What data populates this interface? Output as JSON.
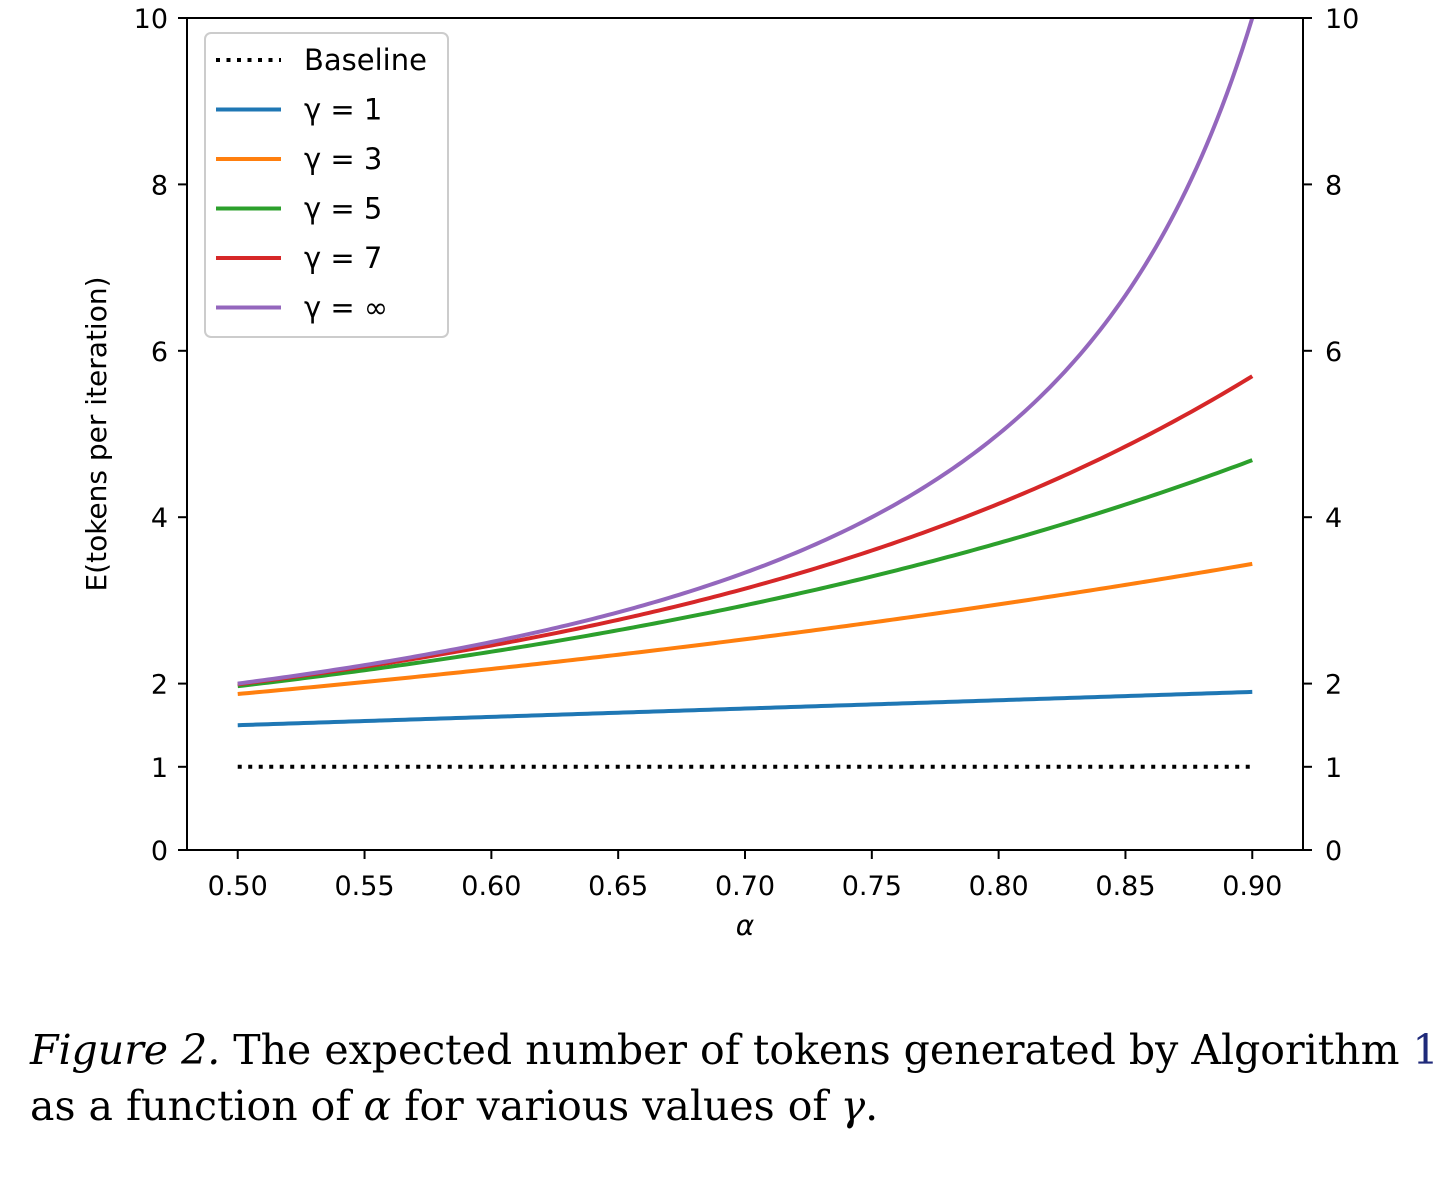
{
  "chart_data": {
    "type": "line",
    "xlabel": "α",
    "ylabel": "E(tokens per iteration)",
    "xlim": [
      0.48,
      0.92
    ],
    "ylim": [
      0,
      10
    ],
    "xticks": [
      "0.50",
      "0.55",
      "0.60",
      "0.65",
      "0.70",
      "0.75",
      "0.80",
      "0.85",
      "0.90"
    ],
    "yticks": [
      "0",
      "1",
      "2",
      "4",
      "6",
      "8",
      "10"
    ],
    "ytick_values": [
      0,
      1,
      2,
      4,
      6,
      8,
      10
    ],
    "right_axis_ticks": true,
    "grid": false,
    "legend_position": "upper-left",
    "series": [
      {
        "name": "Baseline",
        "color": "#000000",
        "style": "dotted",
        "x": [
          0.5,
          0.55,
          0.6,
          0.65,
          0.7,
          0.75,
          0.8,
          0.85,
          0.9
        ],
        "y": [
          1,
          1,
          1,
          1,
          1,
          1,
          1,
          1,
          1
        ]
      },
      {
        "name": "γ = 1",
        "color": "#1f77b4",
        "style": "solid",
        "x": [
          0.5,
          0.55,
          0.6,
          0.65,
          0.7,
          0.75,
          0.8,
          0.85,
          0.9
        ],
        "y": [
          1.5,
          1.55,
          1.6,
          1.65,
          1.7,
          1.75,
          1.8,
          1.85,
          1.9
        ]
      },
      {
        "name": "γ = 3",
        "color": "#ff7f0e",
        "style": "solid",
        "x": [
          0.5,
          0.55,
          0.6,
          0.65,
          0.7,
          0.75,
          0.8,
          0.85,
          0.9
        ],
        "y": [
          1.88,
          2.03,
          2.18,
          2.35,
          2.53,
          2.73,
          2.95,
          3.19,
          3.44
        ]
      },
      {
        "name": "γ = 5",
        "color": "#2ca02c",
        "style": "solid",
        "x": [
          0.5,
          0.55,
          0.6,
          0.65,
          0.7,
          0.75,
          0.8,
          0.85,
          0.9
        ],
        "y": [
          1.97,
          2.16,
          2.38,
          2.64,
          2.94,
          3.29,
          3.69,
          4.15,
          4.69
        ]
      },
      {
        "name": "γ = 7",
        "color": "#d62728",
        "style": "solid",
        "x": [
          0.5,
          0.55,
          0.6,
          0.65,
          0.7,
          0.75,
          0.8,
          0.85,
          0.9
        ],
        "y": [
          1.99,
          2.2,
          2.45,
          2.75,
          3.12,
          3.58,
          4.16,
          4.86,
          5.7
        ]
      },
      {
        "name": "γ = ∞",
        "color": "#9467bd",
        "style": "solid",
        "x": [
          0.5,
          0.55,
          0.6,
          0.65,
          0.7,
          0.75,
          0.8,
          0.85,
          0.9
        ],
        "y": [
          2.0,
          2.22,
          2.5,
          2.86,
          3.33,
          4.0,
          5.0,
          6.67,
          10.0
        ]
      }
    ]
  },
  "caption": {
    "figure_label": "Figure 2.",
    "text_part1": " The expected number of tokens generated by Algorithm ",
    "ref": "1",
    "text_part2": " as a function of ",
    "alpha": "α",
    "text_part3": " for various values of ",
    "gamma": "γ",
    "text_part4": "."
  }
}
